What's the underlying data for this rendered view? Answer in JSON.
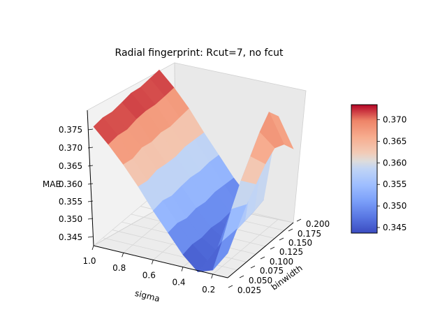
{
  "chart_data": {
    "type": "surface3d",
    "title": "Radial fingerprint: Rcut=7, no fcut",
    "xlabel": "sigma",
    "ylabel": "binwidth",
    "zlabel": "MAE",
    "x_ticks": [
      "1.0",
      "0.8",
      "0.6",
      "0.4",
      "0.2"
    ],
    "y_ticks": [
      "0.025",
      "0.050",
      "0.075",
      "0.100",
      "0.125",
      "0.150",
      "0.175",
      "0.200"
    ],
    "z_ticks": [
      "0.345",
      "0.350",
      "0.355",
      "0.360",
      "0.365",
      "0.370",
      "0.375"
    ],
    "colorbar_ticks": [
      "0.345",
      "0.350",
      "0.355",
      "0.360",
      "0.365",
      "0.370"
    ],
    "colormap": "coolwarm",
    "zlim": [
      0.344,
      0.377
    ],
    "colorbar_range": [
      0.3437,
      0.3735
    ],
    "sigma": [
      1.0,
      0.9,
      0.8,
      0.7,
      0.6,
      0.5,
      0.4,
      0.3,
      0.2,
      0.1
    ],
    "binwidth": [
      0.025,
      0.05,
      0.075,
      0.1,
      0.125,
      0.15,
      0.175,
      0.2
    ],
    "mae": [
      [
        0.373,
        0.3733,
        0.3728,
        0.3731,
        0.3735,
        0.373,
        0.3732,
        0.3734
      ],
      [
        0.3695,
        0.3698,
        0.3693,
        0.3699,
        0.37,
        0.3696,
        0.3697,
        0.3699
      ],
      [
        0.3655,
        0.365,
        0.3658,
        0.3652,
        0.3656,
        0.3651,
        0.3654,
        0.3657
      ],
      [
        0.361,
        0.3605,
        0.3612,
        0.3608,
        0.3606,
        0.3611,
        0.3609,
        0.3607
      ],
      [
        0.356,
        0.3565,
        0.3558,
        0.3562,
        0.3564,
        0.356,
        0.3563,
        0.3561
      ],
      [
        0.3515,
        0.3519,
        0.3512,
        0.3517,
        0.3513,
        0.3518,
        0.3516,
        0.3514
      ],
      [
        0.347,
        0.3476,
        0.3473,
        0.3478,
        0.3474,
        0.3477,
        0.3472,
        0.3475
      ],
      [
        0.3437,
        0.3445,
        0.345,
        0.3455,
        0.346,
        0.3465,
        0.347,
        0.3478
      ],
      [
        0.345,
        0.35,
        0.356,
        0.361,
        0.365,
        0.369,
        0.372,
        0.369
      ],
      [
        0.35,
        0.354,
        0.358,
        0.361,
        0.364,
        0.366,
        0.365,
        0.362
      ]
    ]
  }
}
